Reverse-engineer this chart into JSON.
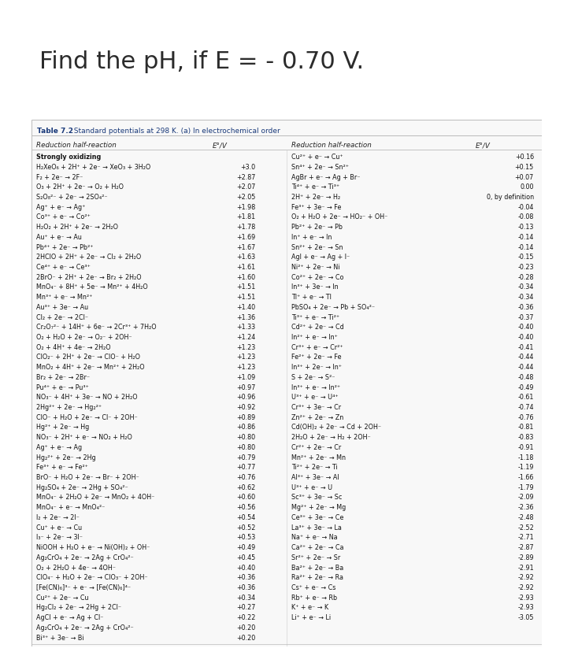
{
  "title": "Find the pH, if E = - 0.70 V.",
  "table_title_bold": "Table 7.2",
  "table_title_rest": "  Standard potentials at 298 K. (a) In electrochemical order",
  "col_headers": [
    "Reduction half-reaction",
    "E°/V",
    "Reduction half-reaction",
    "E°/V"
  ],
  "left_col": [
    [
      "Strongly oxidizing",
      ""
    ],
    [
      "H₂XeO₆ + 2H⁺ + 2e⁻ → XeO₃ + 3H₂O",
      "+3.0"
    ],
    [
      "F₂ + 2e⁻ → 2F⁻",
      "+2.87"
    ],
    [
      "O₃ + 2H⁺ + 2e⁻ → O₂ + H₂O",
      "+2.07"
    ],
    [
      "S₂O₈²⁻ + 2e⁻ → 2SO₄²⁻",
      "+2.05"
    ],
    [
      "Ag⁺ + e⁻ → Ag⁺",
      "+1.98"
    ],
    [
      "Co³⁺ + e⁻ → Co²⁺",
      "+1.81"
    ],
    [
      "H₂O₂ + 2H⁺ + 2e⁻ → 2H₂O",
      "+1.78"
    ],
    [
      "Au⁺ + e⁻ → Au",
      "+1.69"
    ],
    [
      "Pb⁴⁺ + 2e⁻ → Pb²⁺",
      "+1.67"
    ],
    [
      "2HClO + 2H⁺ + 2e⁻ → Cl₂ + 2H₂O",
      "+1.63"
    ],
    [
      "Ce⁴⁺ + e⁻ → Ce³⁺",
      "+1.61"
    ],
    [
      "2BrO⁻ + 2H⁺ + 2e⁻ → Br₂ + 2H₂O",
      "+1.60"
    ],
    [
      "MnO₄⁻ + 8H⁺ + 5e⁻ → Mn²⁺ + 4H₂O",
      "+1.51"
    ],
    [
      "Mn³⁺ + e⁻ → Mn²⁺",
      "+1.51"
    ],
    [
      "Au³⁺ + 3e⁻ → Au",
      "+1.40"
    ],
    [
      "Cl₂ + 2e⁻ → 2Cl⁻",
      "+1.36"
    ],
    [
      "Cr₂O₇²⁻ + 14H⁺ + 6e⁻ → 2Cr³⁺ + 7H₂O",
      "+1.33"
    ],
    [
      "O₂ + H₂O + 2e⁻ → O₂⁻ + 2OH⁻",
      "+1.24"
    ],
    [
      "O₂ + 4H⁺ + 4e⁻ → 2H₂O",
      "+1.23"
    ],
    [
      "ClO₂⁻ + 2H⁺ + 2e⁻ → ClO⁻ + H₂O",
      "+1.23"
    ],
    [
      "MnO₂ + 4H⁺ + 2e⁻ → Mn²⁺ + 2H₂O",
      "+1.23"
    ],
    [
      "Br₂ + 2e⁻ → 2Br⁻",
      "+1.09"
    ],
    [
      "Pu⁴⁺ + e⁻ → Pu³⁺",
      "+0.97"
    ],
    [
      "NO₃⁻ + 4H⁺ + 3e⁻ → NO + 2H₂O",
      "+0.96"
    ],
    [
      "2Hg²⁺ + 2e⁻ → Hg₂²⁺",
      "+0.92"
    ],
    [
      "ClO⁻ + H₂O + 2e⁻ → Cl⁻ + 2OH⁻",
      "+0.89"
    ],
    [
      "Hg²⁺ + 2e⁻ → Hg",
      "+0.86"
    ],
    [
      "NO₃⁻ + 2H⁺ + e⁻ → NO₂ + H₂O",
      "+0.80"
    ],
    [
      "Ag⁺ + e⁻ → Ag",
      "+0.80"
    ],
    [
      "Hg₂²⁺ + 2e⁻ → 2Hg",
      "+0.79"
    ],
    [
      "Fe³⁺ + e⁻ → Fe²⁺",
      "+0.77"
    ],
    [
      "BrO⁻ + H₂O + 2e⁻ → Br⁻ + 2OH⁻",
      "+0.76"
    ],
    [
      "Hg₂SO₄ + 2e⁻ → 2Hg + SO₄²⁻",
      "+0.62"
    ],
    [
      "MnO₄⁻ + 2H₂O + 2e⁻ → MnO₂ + 4OH⁻",
      "+0.60"
    ],
    [
      "MnO₄⁻ + e⁻ → MnO₄²⁻",
      "+0.56"
    ],
    [
      "I₂ + 2e⁻ → 2I⁻",
      "+0.54"
    ],
    [
      "Cu⁺ + e⁻ → Cu",
      "+0.52"
    ],
    [
      "I₃⁻ + 2e⁻ → 3I⁻",
      "+0.53"
    ],
    [
      "NiOOH + H₂O + e⁻ → Ni(OH)₂ + OH⁻",
      "+0.49"
    ],
    [
      "Ag₂CrO₄ + 2e⁻ → 2Ag + CrO₄²⁻",
      "+0.45"
    ],
    [
      "O₂ + 2H₂O + 4e⁻ → 4OH⁻",
      "+0.40"
    ],
    [
      "ClO₄⁻ + H₂O + 2e⁻ → ClO₃⁻ + 2OH⁻",
      "+0.36"
    ],
    [
      "[Fe(CN)₆]³⁻ + e⁻ → [Fe(CN)₆]⁴⁻",
      "+0.36"
    ],
    [
      "Cu²⁺ + 2e⁻ → Cu",
      "+0.34"
    ],
    [
      "Hg₂Cl₂ + 2e⁻ → 2Hg + 2Cl⁻",
      "+0.27"
    ],
    [
      "AgCl + e⁻ → Ag + Cl⁻",
      "+0.22"
    ],
    [
      "Ag₂CrO₄ + 2e⁻ → 2Ag + CrO₄²⁻",
      "+0.20"
    ],
    [
      "Bi³⁺ + 3e⁻ → Bi",
      "+0.20"
    ]
  ],
  "right_col": [
    [
      "Cu²⁺ + e⁻ → Cu⁺",
      "+0.16"
    ],
    [
      "Sn⁴⁺ + 2e⁻ → Sn²⁺",
      "+0.15"
    ],
    [
      "AgBr + e⁻ → Ag + Br⁻",
      "+0.07"
    ],
    [
      "Ti⁴⁺ + e⁻ → Ti³⁺",
      "0.00"
    ],
    [
      "2H⁺ + 2e⁻ → H₂",
      "0, by definition"
    ],
    [
      "Fe³⁺ + 3e⁻ → Fe",
      "-0.04"
    ],
    [
      "O₂ + H₂O + 2e⁻ → HO₂⁻ + OH⁻",
      "-0.08"
    ],
    [
      "Pb²⁺ + 2e⁻ → Pb",
      "-0.13"
    ],
    [
      "In⁺ + e⁻ → In",
      "-0.14"
    ],
    [
      "Sn²⁺ + 2e⁻ → Sn",
      "-0.14"
    ],
    [
      "AgI + e⁻ → Ag + I⁻",
      "-0.15"
    ],
    [
      "Ni²⁺ + 2e⁻ → Ni",
      "-0.23"
    ],
    [
      "Co²⁺ + 2e⁻ → Co",
      "-0.28"
    ],
    [
      "In³⁺ + 3e⁻ → In",
      "-0.34"
    ],
    [
      "Tl⁺ + e⁻ → Tl",
      "-0.34"
    ],
    [
      "PbSO₄ + 2e⁻ → Pb + SO₄²⁻",
      "-0.36"
    ],
    [
      "Ti³⁺ + e⁻ → Ti²⁺",
      "-0.37"
    ],
    [
      "Cd²⁺ + 2e⁻ → Cd",
      "-0.40"
    ],
    [
      "In²⁺ + e⁻ → In⁺",
      "-0.40"
    ],
    [
      "Cr³⁺ + e⁻ → Cr²⁺",
      "-0.41"
    ],
    [
      "Fe²⁺ + 2e⁻ → Fe",
      "-0.44"
    ],
    [
      "In³⁺ + 2e⁻ → In⁺",
      "-0.44"
    ],
    [
      "S + 2e⁻ → S²⁻",
      "-0.48"
    ],
    [
      "In³⁺ + e⁻ → In²⁺",
      "-0.49"
    ],
    [
      "U³⁺ + e⁻ → U⁴⁺",
      "-0.61"
    ],
    [
      "Cr³⁺ + 3e⁻ → Cr",
      "-0.74"
    ],
    [
      "Zn²⁺ + 2e⁻ → Zn",
      "-0.76"
    ],
    [
      "Cd(OH)₂ + 2e⁻ → Cd + 2OH⁻",
      "-0.81"
    ],
    [
      "2H₂O + 2e⁻ → H₂ + 2OH⁻",
      "-0.83"
    ],
    [
      "Cr²⁺ + 2e⁻ → Cr",
      "-0.91"
    ],
    [
      "Mn²⁺ + 2e⁻ → Mn",
      "-1.18"
    ],
    [
      "Ti²⁺ + 2e⁻ → Ti",
      "-1.19"
    ],
    [
      "Al³⁺ + 3e⁻ → Al",
      "-1.66"
    ],
    [
      "U³⁺ + e⁻ → U",
      "-1.79"
    ],
    [
      "Sc³⁺ + 3e⁻ → Sc",
      "-2.09"
    ],
    [
      "Mg²⁺ + 2e⁻ → Mg",
      "-2.36"
    ],
    [
      "Ce³⁺ + 3e⁻ → Ce",
      "-2.48"
    ],
    [
      "La³⁺ + 3e⁻ → La",
      "-2.52"
    ],
    [
      "Na⁺ + e⁻ → Na",
      "-2.71"
    ],
    [
      "Ca²⁺ + 2e⁻ → Ca",
      "-2.87"
    ],
    [
      "Sr²⁺ + 2e⁻ → Sr",
      "-2.89"
    ],
    [
      "Ba²⁺ + 2e⁻ → Ba",
      "-2.91"
    ],
    [
      "Ra²⁺ + 2e⁻ → Ra",
      "-2.92"
    ],
    [
      "Cs⁺ + e⁻ → Cs",
      "-2.92"
    ],
    [
      "Rb⁺ + e⁻ → Rb",
      "-2.93"
    ],
    [
      "K⁺ + e⁻ → K",
      "-2.93"
    ],
    [
      "Li⁺ + e⁻ → Li",
      "-3.05"
    ]
  ],
  "bg_color": "#efefef",
  "table_bg": "#f8f8f8",
  "border_color": "#bbbbbb",
  "title_color": "#2b2b2b",
  "table_title_color": "#1a3a7a",
  "row_text_color": "#111111",
  "header_text_color": "#222222",
  "title_fontsize": 22,
  "table_title_fontsize": 6.5,
  "header_fontsize": 6.3,
  "data_fontsize": 5.8
}
